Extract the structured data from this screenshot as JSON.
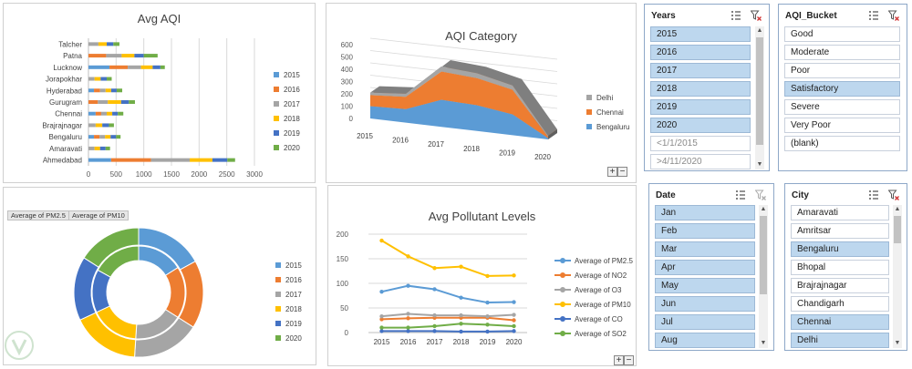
{
  "colors": {
    "y2015": "#5b9bd5",
    "y2016": "#ed7d31",
    "y2017": "#a5a5a5",
    "y2018": "#ffc000",
    "y2019": "#4472c4",
    "y2020": "#70ad47",
    "slicer_selected": "#bdd7ee",
    "gridline": "#d9d9d9"
  },
  "avg_aqi": {
    "title": "Avg AQI",
    "legend": [
      "2015",
      "2016",
      "2017",
      "2018",
      "2019",
      "2020"
    ],
    "chart_data": {
      "type": "bar",
      "orientation": "horizontal",
      "stacked": true,
      "title": "Avg AQI",
      "categories": [
        "Ahmedabad",
        "Amaravati",
        "Bengaluru",
        "Brajrajnagar",
        "Chennai",
        "Gurugram",
        "Hyderabad",
        "Jorapokhar",
        "Lucknow",
        "Patna",
        "Talcher"
      ],
      "xlim": [
        0,
        3000
      ],
      "xticks": [
        0,
        500,
        1000,
        1500,
        2000,
        2500,
        3000
      ],
      "grid": true,
      "legend_position": "right",
      "series": [
        {
          "name": "2015",
          "values": [
            410,
            0,
            100,
            0,
            130,
            0,
            100,
            0,
            380,
            0,
            0
          ]
        },
        {
          "name": "2016",
          "values": [
            720,
            0,
            100,
            0,
            100,
            170,
            110,
            0,
            330,
            320,
            0
          ]
        },
        {
          "name": "2017",
          "values": [
            700,
            110,
            100,
            130,
            100,
            180,
            100,
            110,
            240,
            280,
            180
          ]
        },
        {
          "name": "2018",
          "values": [
            410,
            100,
            100,
            120,
            100,
            240,
            100,
            110,
            210,
            230,
            150
          ]
        },
        {
          "name": "2019",
          "values": [
            270,
            100,
            100,
            120,
            100,
            140,
            100,
            110,
            140,
            170,
            120
          ]
        },
        {
          "name": "2020",
          "values": [
            140,
            80,
            80,
            90,
            100,
            110,
            100,
            90,
            80,
            250,
            110
          ]
        }
      ]
    }
  },
  "aqi_category": {
    "title": "AQI Category",
    "legend": [
      "Delhi",
      "Chennai",
      "Bengaluru"
    ],
    "zoom": [
      "+",
      "−"
    ],
    "chart_data": {
      "type": "area",
      "stacked": true,
      "three_d": true,
      "title": "AQI Category",
      "x": [
        "2015",
        "2016",
        "2017",
        "2018",
        "2019",
        "2020"
      ],
      "ylim": [
        0,
        600
      ],
      "yticks": [
        0,
        100,
        200,
        300,
        400,
        500,
        600
      ],
      "legend_position": "right",
      "series": [
        {
          "name": "Bengaluru",
          "values": [
            100,
            110,
            220,
            210,
            170,
            10
          ]
        },
        {
          "name": "Chennai",
          "values": [
            90,
            100,
            230,
            220,
            200,
            10
          ]
        },
        {
          "name": "Delhi",
          "values": [
            20,
            25,
            40,
            40,
            35,
            10
          ]
        }
      ]
    }
  },
  "donut": {
    "pivot_buttons": [
      "Average of PM2.5",
      "Average of PM10"
    ],
    "legend": [
      "2015",
      "2016",
      "2017",
      "2018",
      "2019",
      "2020"
    ],
    "chart_data": {
      "type": "pie",
      "variant": "donut-two-ring",
      "categories": [
        "2015",
        "2016",
        "2017",
        "2018",
        "2019",
        "2020"
      ],
      "series": [
        {
          "name": "Average of PM2.5",
          "values": [
            16,
            18,
            17,
            17,
            15,
            17
          ]
        },
        {
          "name": "Average of PM10",
          "values": [
            17,
            17,
            17,
            17,
            16,
            16
          ]
        }
      ],
      "legend_position": "right"
    }
  },
  "pollutants": {
    "title": "Avg Pollutant Levels",
    "zoom": [
      "+",
      "−"
    ],
    "chart_data": {
      "type": "line",
      "title": "Avg Pollutant Levels",
      "x": [
        "2015",
        "2016",
        "2017",
        "2018",
        "2019",
        "2020"
      ],
      "ylim": [
        0,
        200
      ],
      "yticks": [
        0,
        50,
        100,
        150,
        200
      ],
      "grid": true,
      "legend_position": "right",
      "series": [
        {
          "name": "Average of PM2.5",
          "values": [
            83,
            95,
            88,
            71,
            61,
            62
          ]
        },
        {
          "name": "Average of NO2",
          "values": [
            27,
            29,
            30,
            30,
            30,
            25
          ]
        },
        {
          "name": "Average of O3",
          "values": [
            33,
            38,
            35,
            35,
            33,
            36
          ]
        },
        {
          "name": "Average of PM10",
          "values": [
            187,
            155,
            131,
            134,
            115,
            116
          ]
        },
        {
          "name": "Average of CO",
          "values": [
            3,
            3,
            3,
            2,
            2,
            3
          ]
        },
        {
          "name": "Average of SO2",
          "values": [
            10,
            10,
            13,
            18,
            16,
            13
          ]
        }
      ],
      "series_colors": [
        "#5b9bd5",
        "#ed7d31",
        "#a5a5a5",
        "#ffc000",
        "#4472c4",
        "#70ad47"
      ]
    }
  },
  "slicers": {
    "years": {
      "title": "Years",
      "items": [
        {
          "label": "2015",
          "selected": true
        },
        {
          "label": "2016",
          "selected": true
        },
        {
          "label": "2017",
          "selected": true
        },
        {
          "label": "2018",
          "selected": true
        },
        {
          "label": "2019",
          "selected": true
        },
        {
          "label": "2020",
          "selected": true
        },
        {
          "label": "<1/1/2015",
          "selected": false,
          "nodata": true
        },
        {
          "label": ">4/11/2020",
          "selected": false,
          "nodata": true
        }
      ]
    },
    "aqi_bucket": {
      "title": "AQI_Bucket",
      "items": [
        {
          "label": "Good",
          "selected": false
        },
        {
          "label": "Moderate",
          "selected": false
        },
        {
          "label": "Poor",
          "selected": false
        },
        {
          "label": "Satisfactory",
          "selected": true
        },
        {
          "label": "Severe",
          "selected": false
        },
        {
          "label": "Very Poor",
          "selected": false
        },
        {
          "label": "(blank)",
          "selected": false
        }
      ]
    },
    "date": {
      "title": "Date",
      "items": [
        {
          "label": "Jan",
          "selected": true
        },
        {
          "label": "Feb",
          "selected": true
        },
        {
          "label": "Mar",
          "selected": true
        },
        {
          "label": "Apr",
          "selected": true
        },
        {
          "label": "May",
          "selected": true
        },
        {
          "label": "Jun",
          "selected": true
        },
        {
          "label": "Jul",
          "selected": true
        },
        {
          "label": "Aug",
          "selected": true
        }
      ]
    },
    "city": {
      "title": "City",
      "items": [
        {
          "label": "Amaravati",
          "selected": false
        },
        {
          "label": "Amritsar",
          "selected": false
        },
        {
          "label": "Bengaluru",
          "selected": true
        },
        {
          "label": "Bhopal",
          "selected": false
        },
        {
          "label": "Brajrajnagar",
          "selected": false
        },
        {
          "label": "Chandigarh",
          "selected": false
        },
        {
          "label": "Chennai",
          "selected": true
        },
        {
          "label": "Delhi",
          "selected": true
        }
      ]
    }
  }
}
